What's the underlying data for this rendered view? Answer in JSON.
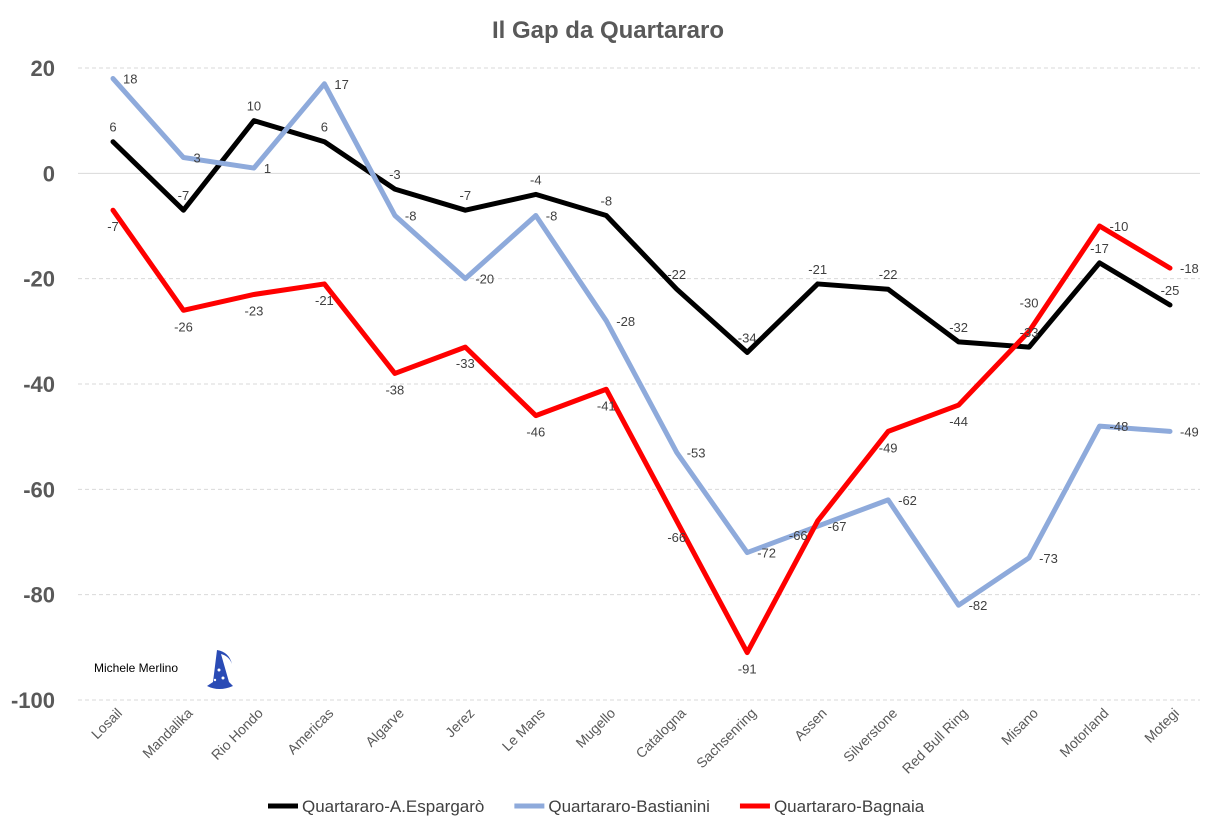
{
  "chart_data": {
    "type": "line",
    "title": "Il Gap da Quartararo",
    "categories": [
      "Losail",
      "Mandalika",
      "Rio Hondo",
      "Americas",
      "Algarve",
      "Jerez",
      "Le Mans",
      "Mugello",
      "Catalogna",
      "Sachsenring",
      "Assen",
      "Silverstone",
      "Red Bull Ring",
      "Misano",
      "Motorland",
      "Motegi"
    ],
    "ylim": [
      -100,
      20
    ],
    "yticks": [
      20,
      0,
      -20,
      -40,
      -60,
      -80,
      -100
    ],
    "grid": true,
    "legend_position": "bottom",
    "series": [
      {
        "name": "Quartararo-A.Espargarò",
        "color": "#000000",
        "values": [
          6,
          -7,
          10,
          6,
          -3,
          -7,
          -4,
          -8,
          -22,
          -34,
          -21,
          -22,
          -32,
          -33,
          -17,
          -25
        ]
      },
      {
        "name": "Quartararo-Bastianini",
        "color": "#8eaadb",
        "values": [
          18,
          3,
          1,
          17,
          -8,
          -20,
          -8,
          -28,
          -53,
          -72,
          -67,
          -62,
          -82,
          -73,
          -48,
          -49
        ]
      },
      {
        "name": "Quartararo-Bagnaia",
        "color": "#ff0000",
        "values": [
          -7,
          -26,
          -23,
          -21,
          -38,
          -33,
          -46,
          -41,
          -66,
          -91,
          -66,
          -49,
          -44,
          -30,
          -10,
          -18
        ]
      }
    ]
  },
  "watermark": {
    "author": "Michele Merlino",
    "icon": "wizard-hat-icon"
  }
}
